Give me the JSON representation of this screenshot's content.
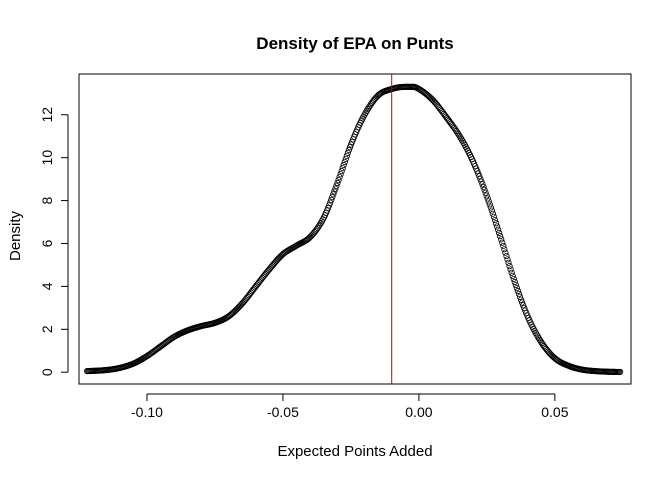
{
  "chart_data": {
    "type": "scatter",
    "title": "Density of EPA on Punts",
    "xlabel": "Expected Points Added",
    "ylabel": "Density",
    "xlim": [
      -0.125,
      0.078
    ],
    "ylim": [
      -0.55,
      13.9
    ],
    "x_ticks": [
      -0.1,
      -0.05,
      0.0,
      0.05
    ],
    "x_tick_labels": [
      "-0.10",
      "-0.05",
      "0.00",
      "0.05"
    ],
    "y_ticks": [
      0,
      2,
      4,
      6,
      8,
      10,
      12
    ],
    "y_tick_labels": [
      "0",
      "2",
      "4",
      "6",
      "8",
      "10",
      "12"
    ],
    "x_range": [
      -0.122,
      0.074
    ],
    "n_points": 512,
    "curve_knots": {
      "x": [
        -0.122,
        -0.115,
        -0.11,
        -0.105,
        -0.1,
        -0.095,
        -0.09,
        -0.085,
        -0.08,
        -0.075,
        -0.07,
        -0.065,
        -0.06,
        -0.055,
        -0.05,
        -0.045,
        -0.04,
        -0.035,
        -0.03,
        -0.025,
        -0.02,
        -0.015,
        -0.01,
        -0.005,
        -0.002,
        0.0,
        0.005,
        0.01,
        0.015,
        0.02,
        0.025,
        0.03,
        0.035,
        0.04,
        0.045,
        0.05,
        0.055,
        0.06,
        0.065,
        0.07,
        0.074
      ],
      "y": [
        0.05,
        0.1,
        0.2,
        0.4,
        0.75,
        1.2,
        1.65,
        1.95,
        2.15,
        2.3,
        2.6,
        3.2,
        4.0,
        4.8,
        5.5,
        5.9,
        6.3,
        7.2,
        8.8,
        10.6,
        12.0,
        12.9,
        13.2,
        13.3,
        13.3,
        13.2,
        12.7,
        11.9,
        11.0,
        9.8,
        8.2,
        6.3,
        4.3,
        2.6,
        1.4,
        0.65,
        0.3,
        0.12,
        0.05,
        0.02,
        0.01
      ]
    },
    "vline": {
      "x": -0.01,
      "color": "#cc0000"
    },
    "point_color": "#000000"
  }
}
